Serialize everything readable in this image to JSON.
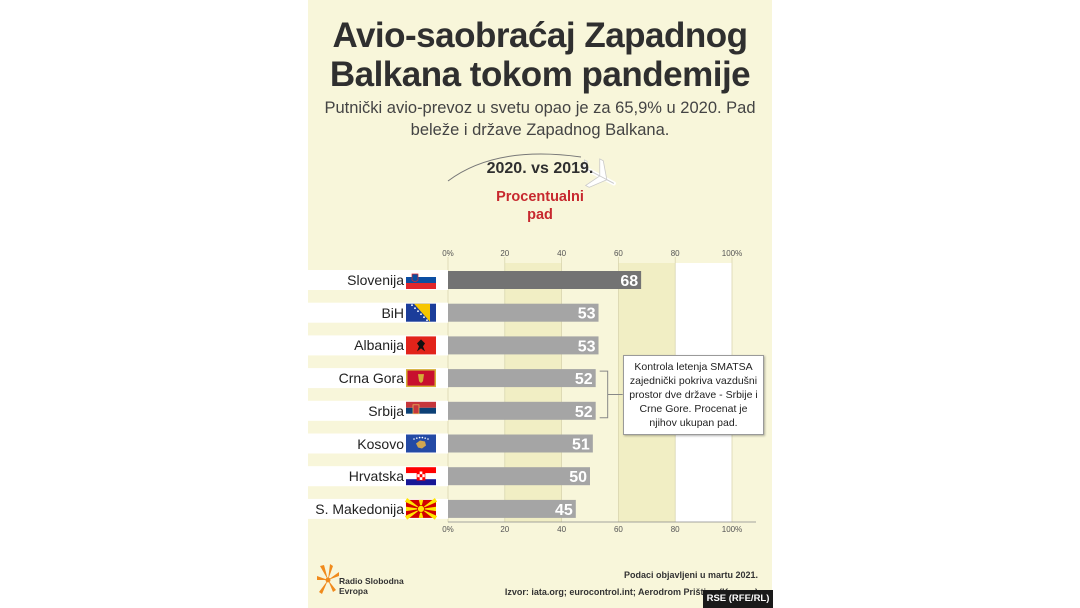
{
  "title_line1": "Avio-saobraćaj Zapadnog",
  "title_line2": "Balkana tokom pandemije",
  "subtitle_line1": "Putnički avio-prevoz u svetu opao je za 65,9% u 2020. Pad",
  "subtitle_line2": "beleže i države Zapadnog Balkana.",
  "comparison": "2020. vs 2019.",
  "measure_line1": "Procentualni",
  "measure_line2": "pad",
  "note_lines": [
    "Kontrola letenja SMATSA",
    "zajednički pokriva vazdušni",
    "prostor dve države - Srbije i",
    "Crne Gore. Procenat je",
    "njihov ukupan pad."
  ],
  "logo_line1": "Radio Slobodna",
  "logo_line2": "Evropa",
  "published": "Podaci objavljeni u martu 2021.",
  "source": "Izvor: iata.org; eurocontrol.int; Aerodrom Priština (Kosovo)",
  "credit": "RSE (RFE/RL)",
  "colors": {
    "highlight_bar": "#737373",
    "bar": "#a5a5a5",
    "accent": "#c7282e",
    "background": "#f8f6da"
  },
  "chart_data": {
    "type": "bar",
    "orientation": "horizontal",
    "categories": [
      "Slovenija",
      "BiH",
      "Albanija",
      "Crna Gora",
      "Srbija",
      "Kosovo",
      "Hrvatska",
      "S. Makedonija"
    ],
    "values": [
      68,
      53,
      53,
      52,
      52,
      51,
      50,
      45
    ],
    "flags": [
      "slovenia-flag",
      "bosnia-flag",
      "albania-flag",
      "montenegro-flag",
      "serbia-flag",
      "kosovo-flag",
      "croatia-flag",
      "north-macedonia-flag"
    ],
    "xlim": [
      0,
      100
    ],
    "ticks": [
      "0%",
      "20",
      "40",
      "60",
      "80",
      "100%"
    ],
    "grid": true,
    "highlight_category": "Slovenija"
  }
}
